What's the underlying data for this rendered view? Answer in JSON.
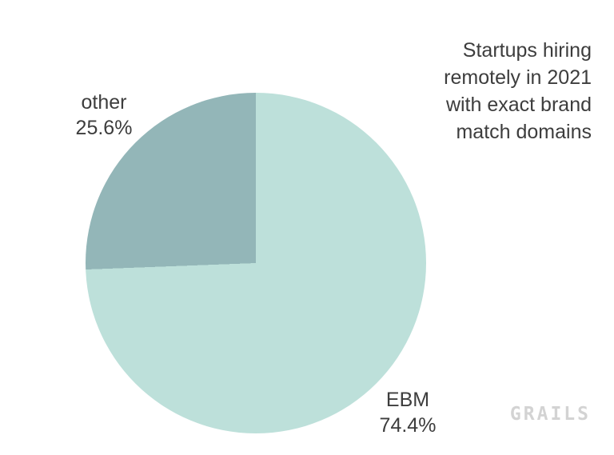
{
  "chart_data": {
    "type": "pie",
    "title": "Startups hiring remotely in 2021 with exact brand match domains",
    "title_lines": [
      "Startups hiring",
      "remotely in 2021",
      "with exact brand",
      "match domains"
    ],
    "slices": [
      {
        "label": "EBM",
        "value": 74.4,
        "display_value": "74.4%",
        "color": "#bde0da"
      },
      {
        "label": "other",
        "value": 25.6,
        "display_value": "25.6%",
        "color": "#93b6b8"
      }
    ],
    "total": 100,
    "start_angle": "12 o'clock",
    "direction": "clockwise",
    "legend_position": "labels outside slices",
    "background": "#ffffff",
    "text_color": "#3d3d3d"
  },
  "logo": {
    "text": "GRAILS",
    "color": "#d3d3d3"
  }
}
